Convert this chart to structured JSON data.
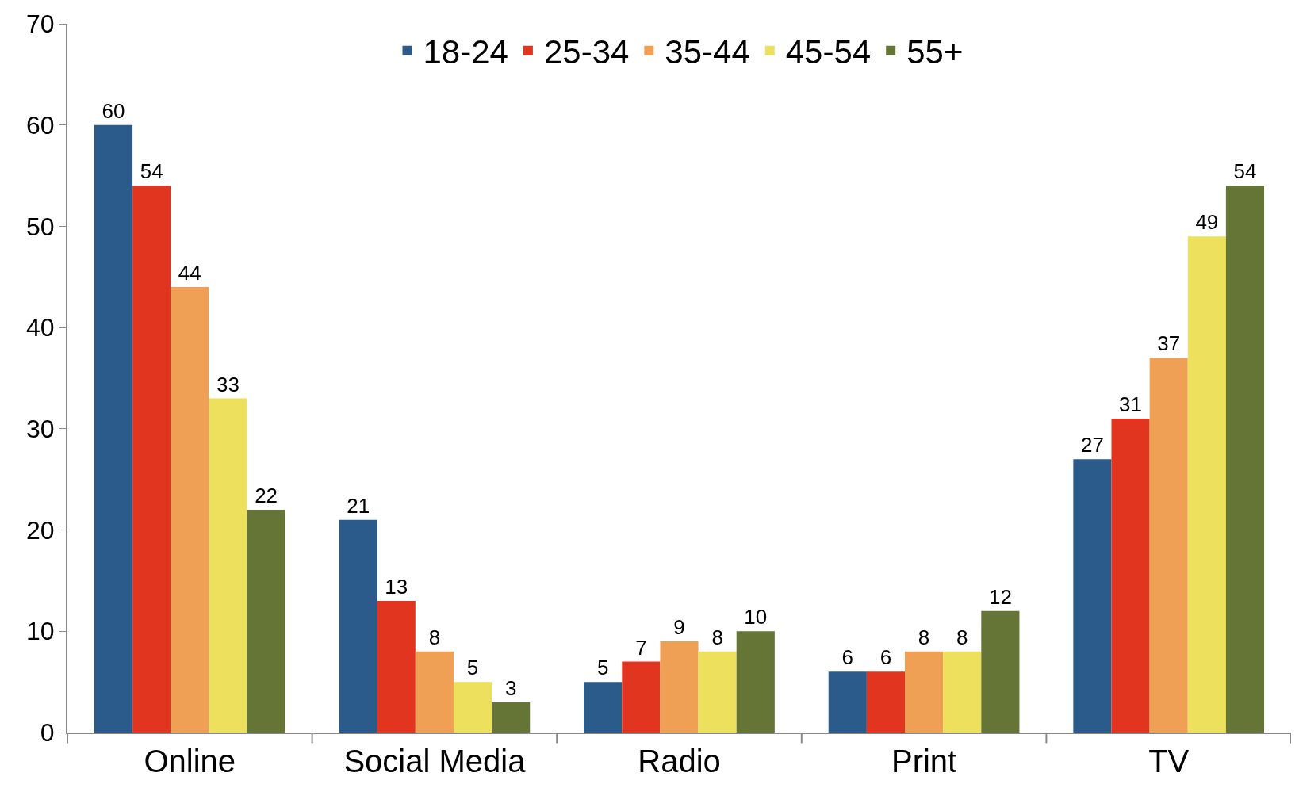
{
  "chart_data": {
    "type": "bar",
    "categories": [
      "Online",
      "Social Media",
      "Radio",
      "Print",
      "TV"
    ],
    "series": [
      {
        "name": "18-24",
        "color": "#2a5b8a",
        "values": [
          60,
          21,
          5,
          6,
          27
        ]
      },
      {
        "name": "25-34",
        "color": "#e2351f",
        "values": [
          54,
          13,
          7,
          6,
          31
        ]
      },
      {
        "name": "35-44",
        "color": "#f0a055",
        "values": [
          44,
          8,
          9,
          8,
          37
        ]
      },
      {
        "name": "45-54",
        "color": "#ece05c",
        "values": [
          33,
          5,
          8,
          8,
          49
        ]
      },
      {
        "name": "55+",
        "color": "#647535",
        "values": [
          22,
          3,
          10,
          12,
          54
        ]
      }
    ],
    "ylim": [
      0,
      70
    ],
    "yticks": [
      0,
      10,
      20,
      30,
      40,
      50,
      60,
      70
    ],
    "data_labels": true,
    "legend": "top"
  }
}
